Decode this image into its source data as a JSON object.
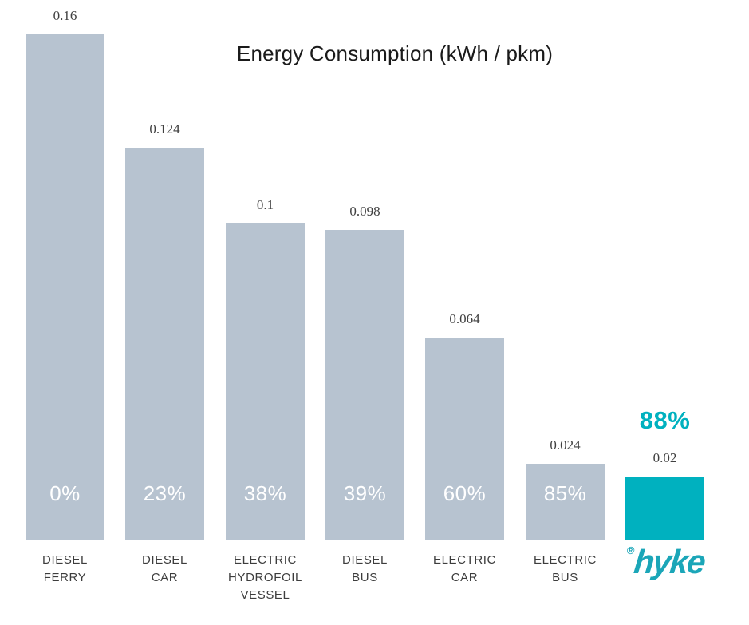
{
  "chart_data": {
    "type": "bar",
    "title": "Energy Consumption (kWh / pkm)",
    "categories": [
      "DIESEL FERRY",
      "DIESEL CAR",
      "ELECTRIC HYDROFOIL VESSEL",
      "DIESEL BUS",
      "ELECTRIC CAR",
      "ELECTRIC BUS",
      "HYKE"
    ],
    "category_lines": [
      [
        "DIESEL",
        "FERRY"
      ],
      [
        "DIESEL",
        "CAR"
      ],
      [
        "ELECTRIC",
        "HYDROFOIL",
        "VESSEL"
      ],
      [
        "DIESEL",
        "BUS"
      ],
      [
        "ELECTRIC",
        "CAR"
      ],
      [
        "ELECTRIC",
        "BUS"
      ],
      []
    ],
    "values": [
      0.16,
      0.124,
      0.1,
      0.098,
      0.064,
      0.024,
      0.02
    ],
    "value_labels": [
      "0.16",
      "0.124",
      "0.1",
      "0.098",
      "0.064",
      "0.024",
      "0.02"
    ],
    "percent_labels": [
      "0%",
      "23%",
      "38%",
      "39%",
      "60%",
      "85%",
      "88%"
    ],
    "xlabel": "",
    "ylabel": "",
    "ylim": [
      0,
      0.16
    ],
    "grid": false,
    "legend": false,
    "highlight_index": 6,
    "last_category_is_logo": true
  },
  "branding": {
    "logo_text": "hyke",
    "registered_mark": "®"
  },
  "colors": {
    "background": "#FFFFFF",
    "bar_default": "#B7C3D0",
    "bar_highlight": "#00B1BF",
    "percent_text": "#FFFFFF",
    "percent_text_highlight": "#00B1BF",
    "value_text": "#404040",
    "category_text": "#3D3D3D",
    "title_text": "#1A1A1A",
    "logo_text_color": "#1BA6B8"
  }
}
